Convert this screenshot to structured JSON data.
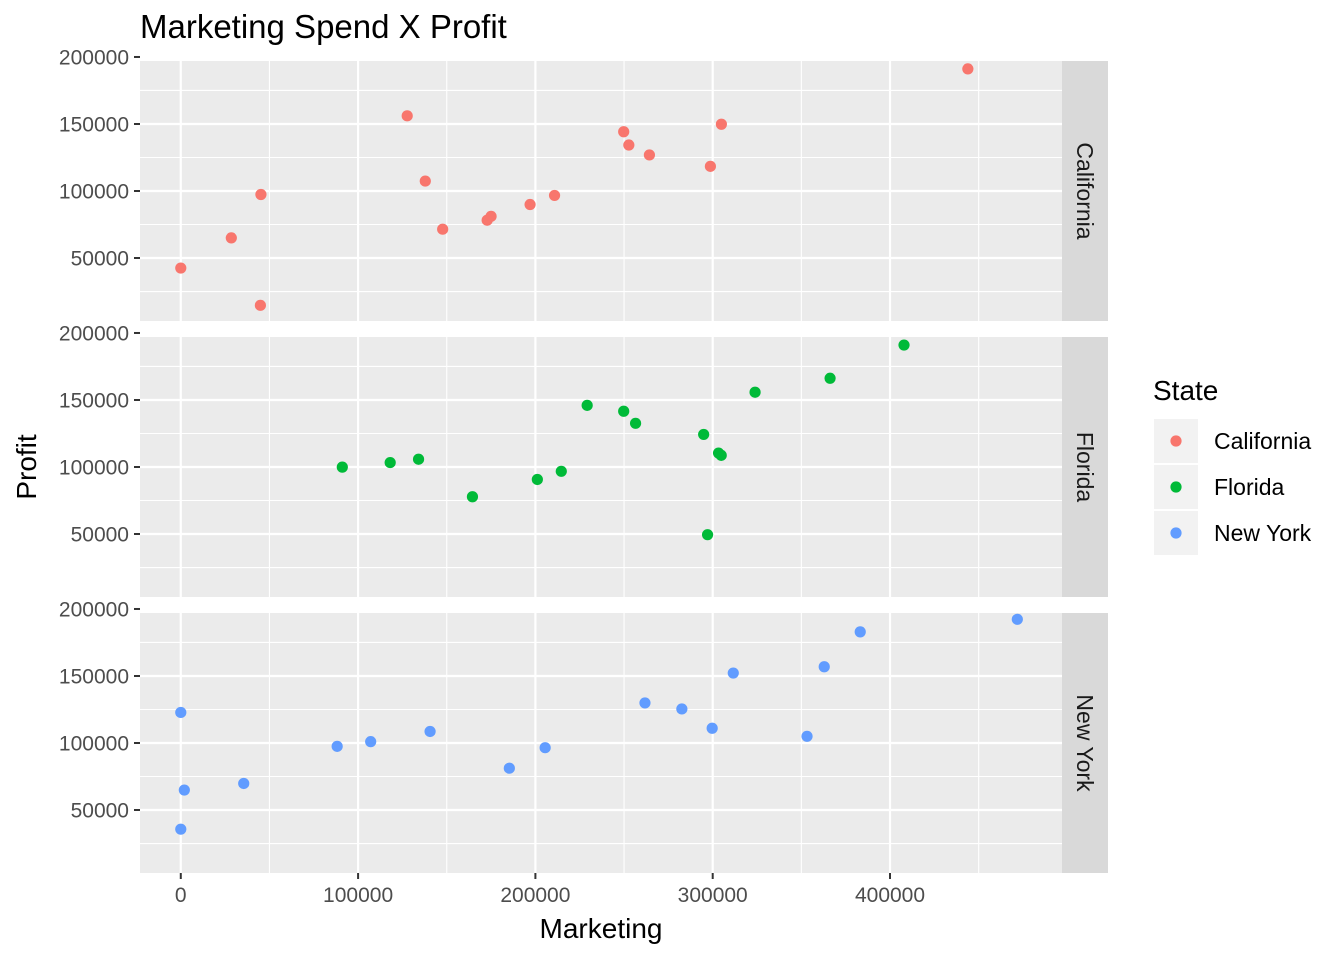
{
  "chart_data": {
    "type": "scatter",
    "title": "Marketing Spend X Profit",
    "xlabel": "Marketing",
    "ylabel": "Profit",
    "xlim": [
      -23000,
      497000
    ],
    "ylim": [
      3000,
      197000
    ],
    "x_ticks": [
      0,
      100000,
      200000,
      300000,
      400000
    ],
    "y_ticks": [
      50000,
      100000,
      150000,
      200000
    ],
    "grid": true,
    "facets": [
      "California",
      "Florida",
      "New York"
    ],
    "legend": {
      "title": "State",
      "placement": "right",
      "entries": [
        "California",
        "Florida",
        "New York"
      ]
    },
    "colors": {
      "California": "#F8766D",
      "Florida": "#00BA38",
      "New York": "#619CFF",
      "panel": "#EBEBEB",
      "grid": "#FFFFFF",
      "strip": "#D9D9D9"
    },
    "series": [
      {
        "name": "California",
        "points": [
          [
            0,
            42500
          ],
          [
            28500,
            65000
          ],
          [
            45200,
            97400
          ],
          [
            44900,
            14700
          ],
          [
            127700,
            156100
          ],
          [
            137900,
            107400
          ],
          [
            147700,
            71500
          ],
          [
            172800,
            78200
          ],
          [
            175000,
            81100
          ],
          [
            197000,
            89900
          ],
          [
            210800,
            96700
          ],
          [
            249800,
            144200
          ],
          [
            252700,
            134300
          ],
          [
            264300,
            126900
          ],
          [
            298700,
            118400
          ],
          [
            304900,
            149800
          ],
          [
            443900,
            191100
          ]
        ]
      },
      {
        "name": "Florida",
        "points": [
          [
            91100,
            99900
          ],
          [
            118100,
            103300
          ],
          [
            134100,
            105800
          ],
          [
            164500,
            77800
          ],
          [
            201100,
            90700
          ],
          [
            214600,
            96800
          ],
          [
            229200,
            146000
          ],
          [
            249800,
            141600
          ],
          [
            256500,
            132600
          ],
          [
            294900,
            124300
          ],
          [
            303300,
            110400
          ],
          [
            304800,
            108700
          ],
          [
            297100,
            49500
          ],
          [
            323900,
            155800
          ],
          [
            366200,
            166200
          ],
          [
            407900,
            191000
          ]
        ]
      },
      {
        "name": "New York",
        "points": [
          [
            0,
            122800
          ],
          [
            2000,
            64900
          ],
          [
            0,
            35700
          ],
          [
            35500,
            69800
          ],
          [
            88200,
            97500
          ],
          [
            107100,
            101000
          ],
          [
            140600,
            108600
          ],
          [
            185300,
            81200
          ],
          [
            205500,
            96500
          ],
          [
            261800,
            129900
          ],
          [
            282600,
            125400
          ],
          [
            299700,
            111000
          ],
          [
            311600,
            152200
          ],
          [
            353200,
            105000
          ],
          [
            362900,
            156900
          ],
          [
            383200,
            182900
          ],
          [
            471800,
            192300
          ]
        ]
      }
    ]
  }
}
